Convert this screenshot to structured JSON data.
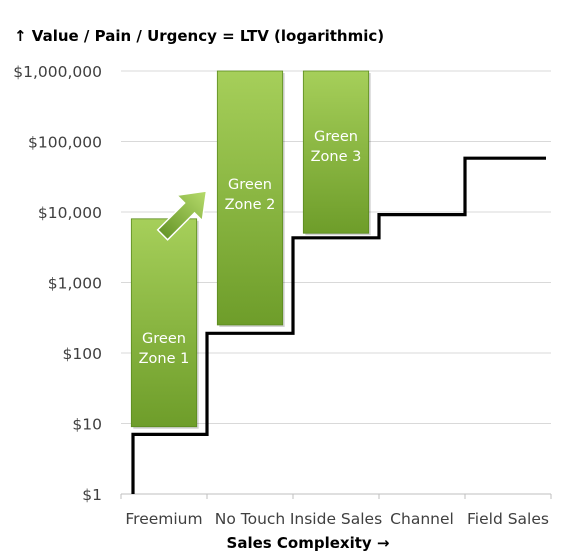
{
  "chart_data": {
    "type": "bar",
    "title": "↑ Value / Pain / Urgency = LTV (logarithmic)",
    "xlabel": "Sales Complexity →",
    "ylabel": "",
    "y_scale": "log",
    "ylim": [
      1,
      1000000
    ],
    "y_ticks": [
      {
        "value": 1,
        "label": "$1"
      },
      {
        "value": 10,
        "label": "$10"
      },
      {
        "value": 100,
        "label": "$100"
      },
      {
        "value": 1000,
        "label": "$1,000"
      },
      {
        "value": 10000,
        "label": "$10,000"
      },
      {
        "value": 100000,
        "label": "$100,000"
      },
      {
        "value": 1000000,
        "label": "$1,000,000"
      }
    ],
    "categories": [
      "Freemium",
      "No Touch",
      "Inside Sales",
      "Channel",
      "Field Sales"
    ],
    "grid": true,
    "zones": [
      {
        "name": "Green Zone 1",
        "label_lines": [
          "Green",
          "Zone 1"
        ],
        "low": 9,
        "high": 8000
      },
      {
        "name": "Green Zone 2",
        "label_lines": [
          "Green",
          "Zone 2"
        ],
        "low": 250,
        "high": 1000000
      },
      {
        "name": "Green Zone 3",
        "label_lines": [
          "Green",
          "Zone 3"
        ],
        "low": 5000,
        "high": 1000000
      }
    ],
    "step_line": [
      {
        "category_index": 0,
        "value": 7
      },
      {
        "category_index": 1,
        "value": 190
      },
      {
        "category_index": 2,
        "value": 4300
      },
      {
        "category_index": 3,
        "value": 9200
      },
      {
        "category_index": 4,
        "value": 58000
      }
    ],
    "colors": {
      "zone_fill_top": "#a6cf5a",
      "zone_fill_bottom": "#6e9d2a",
      "zone_text": "#ffffff",
      "step_line": "#000000",
      "grid": "#d9d9d9",
      "axis_text": "#404040"
    },
    "annotations": [
      {
        "type": "arrow",
        "direction": "up-right",
        "from_zone": "Green Zone 1",
        "to_zone": "Green Zone 2"
      }
    ]
  }
}
